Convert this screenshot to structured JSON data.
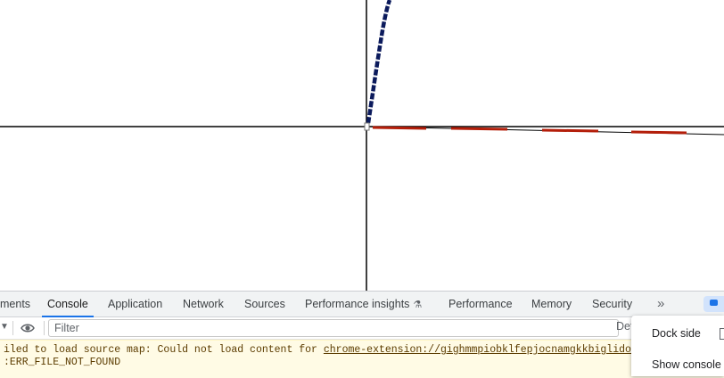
{
  "tabs": [
    {
      "label": "ments",
      "active": false
    },
    {
      "label": "Console",
      "active": true
    },
    {
      "label": "Application",
      "active": false
    },
    {
      "label": "Network",
      "active": false
    },
    {
      "label": "Sources",
      "active": false
    },
    {
      "label": "Performance insights",
      "active": false
    },
    {
      "label": "Performance",
      "active": false
    },
    {
      "label": "Memory",
      "active": false
    },
    {
      "label": "Security",
      "active": false
    }
  ],
  "more_tabs": "»",
  "toolbar": {
    "filter_placeholder": "Filter",
    "level_label": "Def"
  },
  "console": {
    "message_prefix": "iled to load source map: Could not load content for ",
    "message_link": "chrome-extension://gighmmpiobklfepjocnamgkkbiglidom/bro",
    "message_line2": ":ERR_FILE_NOT_FOUND"
  },
  "menu": {
    "dock_side": "Dock side",
    "show_console_drawer": "Show console d"
  },
  "colors": {
    "active_tab_underline": "#1a73e8",
    "warning_background": "#fffbe5",
    "curve_blue": "#0b1a5c",
    "curve_red": "#b41e0a"
  },
  "icons": [
    "eye-icon",
    "beaker-icon",
    "more-tabs-icon",
    "feedback-icon",
    "dock-side-icon"
  ]
}
